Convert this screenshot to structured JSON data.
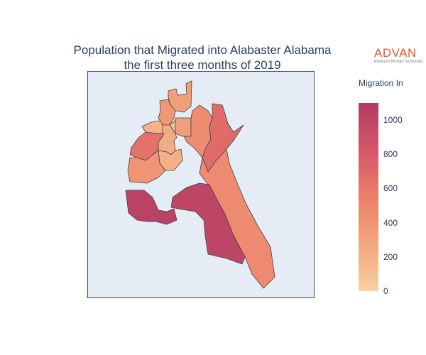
{
  "title": {
    "line1": "Population that Migrated into Alabaster Alabama",
    "line2": "the first three months of 2019"
  },
  "logo": {
    "name": "ADVAN",
    "tagline": "Research through Technology"
  },
  "colorbar": {
    "title": "Migration In",
    "min": 0,
    "max": 1100,
    "ticks": [
      "0",
      "200",
      "400",
      "600",
      "800",
      "1000"
    ],
    "colors": {
      "low": "#f6d2a4",
      "mid_low": "#f3a67e",
      "mid": "#eb7f6a",
      "mid_high": "#d4566a",
      "high": "#b03b63"
    }
  },
  "map": {
    "background": "#e5ecf6",
    "regions": [
      {
        "id": "r1",
        "value": 330
      },
      {
        "id": "r2",
        "value": 380
      },
      {
        "id": "r3",
        "value": 200
      },
      {
        "id": "r4",
        "value": 330
      },
      {
        "id": "r5",
        "value": 230
      },
      {
        "id": "r6",
        "value": 640
      },
      {
        "id": "r7",
        "value": 120
      },
      {
        "id": "r8",
        "value": 210
      },
      {
        "id": "r9",
        "value": 400
      },
      {
        "id": "r10",
        "value": 460
      },
      {
        "id": "r11",
        "value": 680
      },
      {
        "id": "r12",
        "value": 470
      },
      {
        "id": "r13",
        "value": 1000
      },
      {
        "id": "r14",
        "value": 1030
      }
    ]
  }
}
